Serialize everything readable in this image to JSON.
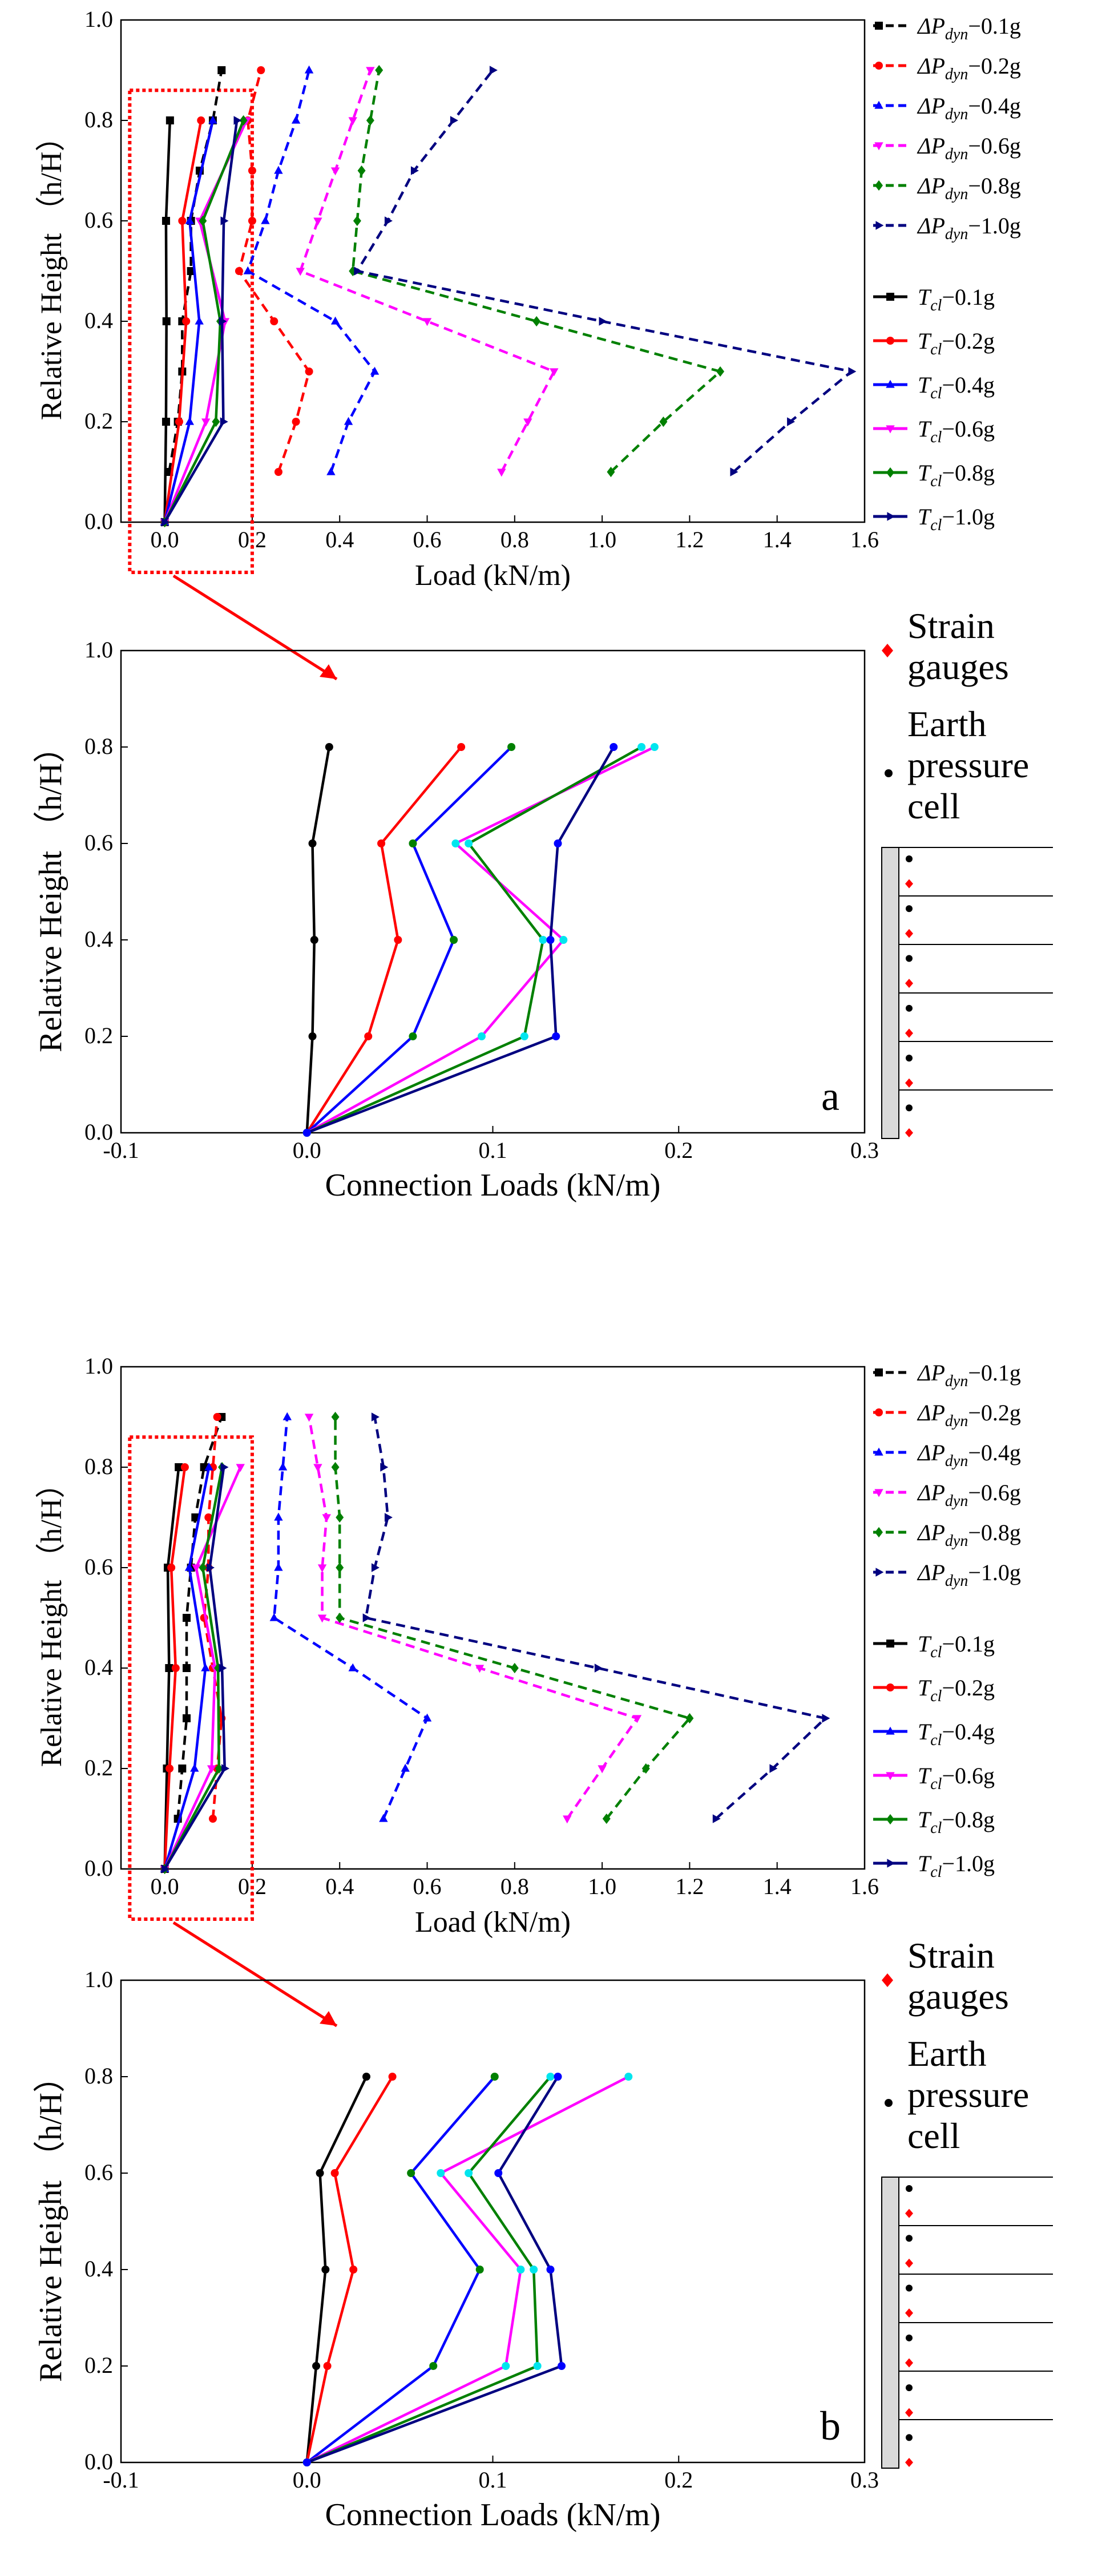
{
  "colors": {
    "c01": "#000000",
    "c02": "#ff0000",
    "c04": "#0000ff",
    "c06": "#ff00ff",
    "c08": "#008000",
    "c10": "#000080",
    "cyan": "#00e5ee",
    "box": "#ff0000",
    "arrow": "#ff0000",
    "wall_fill": "#d9d9d9",
    "strain": "#ff0000",
    "cell": "#000000"
  },
  "legend": {
    "dp": [
      {
        "prefix": "ΔP",
        "sub": "dyn",
        "suffix": "−0.1g"
      },
      {
        "prefix": "ΔP",
        "sub": "dyn",
        "suffix": "−0.2g"
      },
      {
        "prefix": "ΔP",
        "sub": "dyn",
        "suffix": "−0.4g"
      },
      {
        "prefix": "ΔP",
        "sub": "dyn",
        "suffix": "−0.6g"
      },
      {
        "prefix": "ΔP",
        "sub": "dyn",
        "suffix": "−0.8g"
      },
      {
        "prefix": "ΔP",
        "sub": "dyn",
        "suffix": "−1.0g"
      }
    ],
    "tcl": [
      {
        "prefix": "T",
        "sub": "cl",
        "suffix": "−0.1g"
      },
      {
        "prefix": "T",
        "sub": "cl",
        "suffix": "−0.2g"
      },
      {
        "prefix": "T",
        "sub": "cl",
        "suffix": "−0.4g"
      },
      {
        "prefix": "T",
        "sub": "cl",
        "suffix": "−0.6g"
      },
      {
        "prefix": "T",
        "sub": "cl",
        "suffix": "−0.8g"
      },
      {
        "prefix": "T",
        "sub": "cl",
        "suffix": "−1.0g"
      }
    ]
  },
  "sensor_legend": {
    "strain": [
      "Strain",
      "gauges"
    ],
    "cell": [
      "Earth",
      "pressure",
      "cell"
    ]
  },
  "chart_data": [
    {
      "id": "a-load",
      "type": "line",
      "xlabel": "Load  (kN/m)",
      "ylabel": "Relative Height （h/H）",
      "xlim": [
        -0.1,
        1.6
      ],
      "ylim": [
        0,
        1.0
      ],
      "xticks": [
        "0.0",
        "0.2",
        "0.4",
        "0.6",
        "0.8",
        "1.0",
        "1.2",
        "1.4",
        "1.6"
      ],
      "yticks": [
        "0.0",
        "0.2",
        "0.4",
        "0.6",
        "0.8",
        "1.0"
      ],
      "zoom_box": {
        "x": [
          -0.08,
          0.2
        ],
        "y": [
          -0.1,
          0.86
        ]
      },
      "series_dp": [
        {
          "name": "ΔPdyn−0.1g",
          "h": [
            0.1,
            0.2,
            0.3,
            0.4,
            0.5,
            0.6,
            0.7,
            0.8,
            0.9
          ],
          "x": [
            0.01,
            0.03,
            0.04,
            0.04,
            0.06,
            0.06,
            0.08,
            0.11,
            0.13
          ]
        },
        {
          "name": "ΔPdyn−0.2g",
          "h": [
            0.1,
            0.2,
            0.3,
            0.4,
            0.5,
            0.6,
            0.7,
            0.8,
            0.9
          ],
          "x": [
            0.26,
            0.3,
            0.33,
            0.25,
            0.17,
            0.2,
            0.2,
            0.19,
            0.22
          ]
        },
        {
          "name": "ΔPdyn−0.4g",
          "h": [
            0.1,
            0.2,
            0.3,
            0.4,
            0.5,
            0.6,
            0.7,
            0.8,
            0.9
          ],
          "x": [
            0.38,
            0.42,
            0.48,
            0.39,
            0.19,
            0.23,
            0.26,
            0.3,
            0.33
          ]
        },
        {
          "name": "ΔPdyn−0.6g",
          "h": [
            0.1,
            0.2,
            0.3,
            0.4,
            0.5,
            0.6,
            0.7,
            0.8,
            0.9
          ],
          "x": [
            0.77,
            0.83,
            0.89,
            0.6,
            0.31,
            0.35,
            0.39,
            0.43,
            0.47
          ]
        },
        {
          "name": "ΔPdyn−0.8g",
          "h": [
            0.1,
            0.2,
            0.3,
            0.4,
            0.5,
            0.6,
            0.7,
            0.8,
            0.9
          ],
          "x": [
            1.02,
            1.14,
            1.27,
            0.85,
            0.43,
            0.44,
            0.45,
            0.47,
            0.49
          ]
        },
        {
          "name": "ΔPdyn−1.0g",
          "h": [
            0.1,
            0.2,
            0.3,
            0.4,
            0.5,
            0.6,
            0.7,
            0.8,
            0.9
          ],
          "x": [
            1.3,
            1.43,
            1.57,
            1.0,
            0.44,
            0.51,
            0.57,
            0.66,
            0.75
          ]
        }
      ],
      "series_tcl": [
        {
          "name": "Tcl−0.1g",
          "h": [
            0,
            0.2,
            0.4,
            0.6,
            0.8
          ],
          "x": [
            0.0,
            0.003,
            0.004,
            0.003,
            0.012
          ]
        },
        {
          "name": "Tcl−0.2g",
          "h": [
            0,
            0.2,
            0.4,
            0.6,
            0.8
          ],
          "x": [
            0.0,
            0.033,
            0.049,
            0.04,
            0.083
          ]
        },
        {
          "name": "Tcl−0.4g",
          "h": [
            0,
            0.2,
            0.4,
            0.6,
            0.8
          ],
          "x": [
            0.0,
            0.057,
            0.079,
            0.057,
            0.11
          ]
        },
        {
          "name": "Tcl−0.6g",
          "h": [
            0,
            0.2,
            0.4,
            0.6,
            0.8
          ],
          "x": [
            0.0,
            0.094,
            0.138,
            0.08,
            0.187
          ]
        },
        {
          "name": "Tcl−0.8g",
          "h": [
            0,
            0.2,
            0.4,
            0.6,
            0.8
          ],
          "x": [
            0.0,
            0.117,
            0.127,
            0.087,
            0.18
          ]
        },
        {
          "name": "Tcl−1.0g",
          "h": [
            0,
            0.2,
            0.4,
            0.6,
            0.8
          ],
          "x": [
            0.0,
            0.134,
            0.131,
            0.135,
            0.165
          ]
        }
      ]
    },
    {
      "id": "a-connection",
      "type": "line",
      "label": "a",
      "xlabel": "Connection Loads  (kN/m)",
      "ylabel": "Relative Height （h/H）",
      "xlim": [
        -0.1,
        0.3
      ],
      "ylim": [
        0,
        1.0
      ],
      "xticks": [
        "-0.1",
        "0.0",
        "0.1",
        "0.2",
        "0.3"
      ],
      "yticks": [
        "0.0",
        "0.2",
        "0.4",
        "0.6",
        "0.8",
        "1.0"
      ],
      "series": [
        {
          "name": "Tcl−0.1g",
          "h": [
            0,
            0.2,
            0.4,
            0.6,
            0.8
          ],
          "x": [
            0.0,
            0.003,
            0.004,
            0.003,
            0.012
          ]
        },
        {
          "name": "Tcl−0.2g",
          "h": [
            0,
            0.2,
            0.4,
            0.6,
            0.8
          ],
          "x": [
            0.0,
            0.033,
            0.049,
            0.04,
            0.083
          ]
        },
        {
          "name": "Tcl−0.4g",
          "h": [
            0,
            0.2,
            0.4,
            0.6,
            0.8
          ],
          "x": [
            0.0,
            0.057,
            0.079,
            0.057,
            0.11
          ]
        },
        {
          "name": "Tcl−0.6g",
          "h": [
            0,
            0.2,
            0.4,
            0.6,
            0.8
          ],
          "x": [
            0.0,
            0.094,
            0.138,
            0.08,
            0.187
          ]
        },
        {
          "name": "Tcl−0.8g",
          "h": [
            0,
            0.2,
            0.4,
            0.6,
            0.8
          ],
          "x": [
            0.0,
            0.117,
            0.127,
            0.087,
            0.18
          ]
        },
        {
          "name": "Tcl−1.0g",
          "h": [
            0,
            0.2,
            0.4,
            0.6,
            0.8
          ],
          "x": [
            0.0,
            0.134,
            0.131,
            0.135,
            0.165
          ]
        }
      ]
    },
    {
      "id": "b-load",
      "type": "line",
      "xlabel": "Load  (kN/m)",
      "ylabel": "Relative Height （h/H）",
      "xlim": [
        -0.1,
        1.6
      ],
      "ylim": [
        0,
        1.0
      ],
      "xticks": [
        "0.0",
        "0.2",
        "0.4",
        "0.6",
        "0.8",
        "1.0",
        "1.2",
        "1.4",
        "1.6"
      ],
      "yticks": [
        "0.0",
        "0.2",
        "0.4",
        "0.6",
        "0.8",
        "1.0"
      ],
      "zoom_box": {
        "x": [
          -0.08,
          0.2
        ],
        "y": [
          -0.1,
          0.86
        ]
      },
      "series_dp": [
        {
          "name": "ΔPdyn−0.1g",
          "h": [
            0.1,
            0.2,
            0.3,
            0.4,
            0.5,
            0.6,
            0.7,
            0.8,
            0.9
          ],
          "x": [
            0.03,
            0.04,
            0.05,
            0.05,
            0.05,
            0.06,
            0.07,
            0.09,
            0.13
          ]
        },
        {
          "name": "ΔPdyn−0.2g",
          "h": [
            0.1,
            0.2,
            0.3,
            0.4,
            0.5,
            0.6,
            0.7,
            0.8,
            0.9
          ],
          "x": [
            0.11,
            0.12,
            0.13,
            0.11,
            0.09,
            0.1,
            0.1,
            0.11,
            0.12
          ]
        },
        {
          "name": "ΔPdyn−0.4g",
          "h": [
            0.1,
            0.2,
            0.3,
            0.4,
            0.5,
            0.6,
            0.7,
            0.8,
            0.9
          ],
          "x": [
            0.5,
            0.55,
            0.6,
            0.43,
            0.25,
            0.26,
            0.26,
            0.27,
            0.28
          ]
        },
        {
          "name": "ΔPdyn−0.6g",
          "h": [
            0.1,
            0.2,
            0.3,
            0.4,
            0.5,
            0.6,
            0.7,
            0.8,
            0.9
          ],
          "x": [
            0.92,
            1.0,
            1.08,
            0.72,
            0.36,
            0.36,
            0.37,
            0.35,
            0.33
          ]
        },
        {
          "name": "ΔPdyn−0.8g",
          "h": [
            0.1,
            0.2,
            0.3,
            0.4,
            0.5,
            0.6,
            0.7,
            0.8,
            0.9
          ],
          "x": [
            1.01,
            1.1,
            1.2,
            0.8,
            0.4,
            0.4,
            0.4,
            0.39,
            0.39
          ]
        },
        {
          "name": "ΔPdyn−1.0g",
          "h": [
            0.1,
            0.2,
            0.3,
            0.4,
            0.5,
            0.6,
            0.7,
            0.8,
            0.9
          ],
          "x": [
            1.26,
            1.39,
            1.51,
            0.99,
            0.46,
            0.48,
            0.51,
            0.5,
            0.48
          ]
        }
      ],
      "series_tcl": [
        {
          "name": "Tcl−0.1g",
          "h": [
            0,
            0.2,
            0.4,
            0.6,
            0.8
          ],
          "x": [
            0.0,
            0.005,
            0.01,
            0.007,
            0.032
          ]
        },
        {
          "name": "Tcl−0.2g",
          "h": [
            0,
            0.2,
            0.4,
            0.6,
            0.8
          ],
          "x": [
            0.0,
            0.011,
            0.025,
            0.015,
            0.046
          ]
        },
        {
          "name": "Tcl−0.4g",
          "h": [
            0,
            0.2,
            0.4,
            0.6,
            0.8
          ],
          "x": [
            0.0,
            0.068,
            0.093,
            0.056,
            0.101
          ]
        },
        {
          "name": "Tcl−0.6g",
          "h": [
            0,
            0.2,
            0.4,
            0.6,
            0.8
          ],
          "x": [
            0.0,
            0.107,
            0.115,
            0.072,
            0.173
          ]
        },
        {
          "name": "Tcl−0.8g",
          "h": [
            0,
            0.2,
            0.4,
            0.6,
            0.8
          ],
          "x": [
            0.0,
            0.124,
            0.122,
            0.087,
            0.131
          ]
        },
        {
          "name": "Tcl−1.0g",
          "h": [
            0,
            0.2,
            0.4,
            0.6,
            0.8
          ],
          "x": [
            0.0,
            0.137,
            0.131,
            0.103,
            0.135
          ]
        }
      ]
    },
    {
      "id": "b-connection",
      "type": "line",
      "label": "b",
      "xlabel": "Connection Loads  (kN/m)",
      "ylabel": "Relative Height （h/H）",
      "xlim": [
        -0.1,
        0.3
      ],
      "ylim": [
        0,
        1.0
      ],
      "xticks": [
        "-0.1",
        "0.0",
        "0.1",
        "0.2",
        "0.3"
      ],
      "yticks": [
        "0.0",
        "0.2",
        "0.4",
        "0.6",
        "0.8",
        "1.0"
      ],
      "series": [
        {
          "name": "Tcl−0.1g",
          "h": [
            0,
            0.2,
            0.4,
            0.6,
            0.8
          ],
          "x": [
            0.0,
            0.005,
            0.01,
            0.007,
            0.032
          ]
        },
        {
          "name": "Tcl−0.2g",
          "h": [
            0,
            0.2,
            0.4,
            0.6,
            0.8
          ],
          "x": [
            0.0,
            0.011,
            0.025,
            0.015,
            0.046
          ]
        },
        {
          "name": "Tcl−0.4g",
          "h": [
            0,
            0.2,
            0.4,
            0.6,
            0.8
          ],
          "x": [
            0.0,
            0.068,
            0.093,
            0.056,
            0.101
          ]
        },
        {
          "name": "Tcl−0.6g",
          "h": [
            0,
            0.2,
            0.4,
            0.6,
            0.8
          ],
          "x": [
            0.0,
            0.107,
            0.115,
            0.072,
            0.173
          ]
        },
        {
          "name": "Tcl−0.8g",
          "h": [
            0,
            0.2,
            0.4,
            0.6,
            0.8
          ],
          "x": [
            0.0,
            0.124,
            0.122,
            0.087,
            0.131
          ]
        },
        {
          "name": "Tcl−1.0g",
          "h": [
            0,
            0.2,
            0.4,
            0.6,
            0.8
          ],
          "x": [
            0.0,
            0.137,
            0.131,
            0.103,
            0.135
          ]
        }
      ]
    }
  ]
}
